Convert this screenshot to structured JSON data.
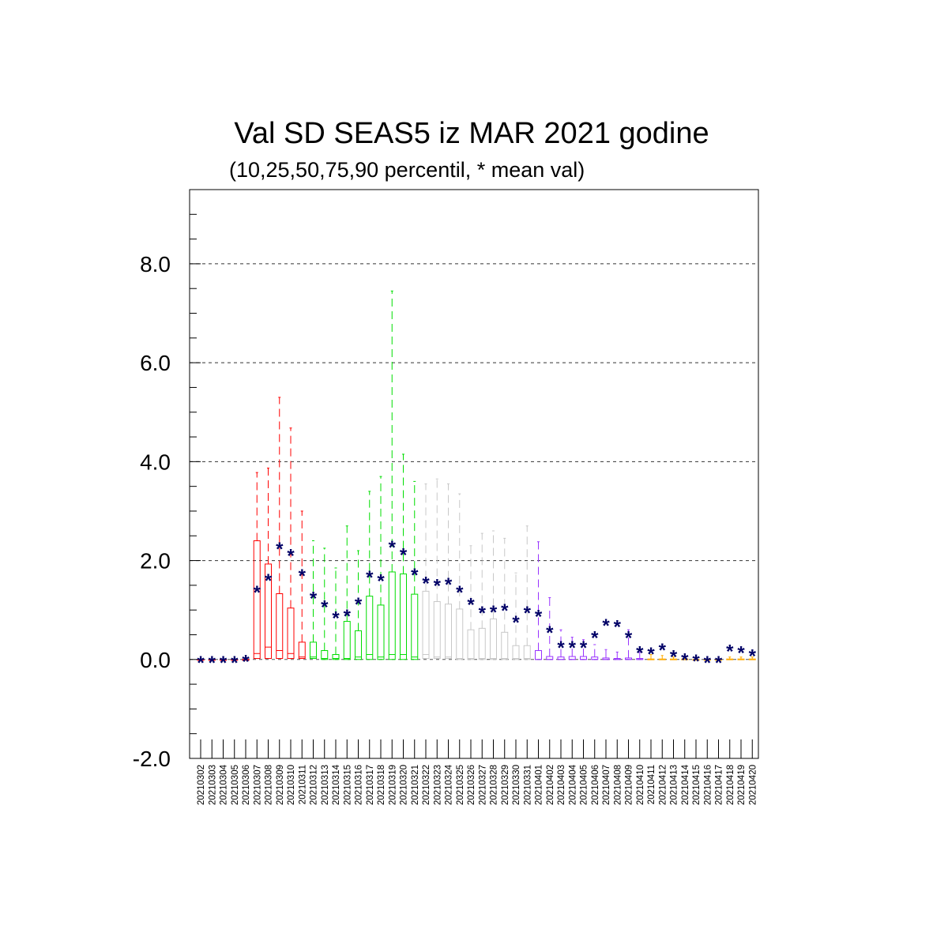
{
  "chart_data": {
    "type": "box",
    "title": "Val SD SEAS5 iz MAR 2021 godine",
    "subtitle": "(10,25,50,75,90 percentil, * mean val)",
    "xlabel": "",
    "ylabel": "",
    "ylim": [
      -2.0,
      9.5
    ],
    "yticks": [
      "-2.0",
      "0.0",
      "2.0",
      "4.0",
      "6.0",
      "8.0"
    ],
    "grid": "dashed at 2.0, 4.0, 6.0, 8.0",
    "mean_marker": "*",
    "mean_color": "#000066",
    "colors": {
      "march_early": "#ff0000",
      "march_mid": "#00dd00",
      "march_late": "#c8c8c8",
      "april_early": "#9933ff",
      "april_late": "#ffaa00"
    },
    "categories": [
      "20210302",
      "20210303",
      "20210304",
      "20210305",
      "20210306",
      "20210307",
      "20210308",
      "20210309",
      "20210310",
      "20210311",
      "20210312",
      "20210313",
      "20210314",
      "20210315",
      "20210316",
      "20210317",
      "20210318",
      "20210319",
      "20210320",
      "20210321",
      "20210322",
      "20210323",
      "20210324",
      "20210325",
      "20210326",
      "20210327",
      "20210328",
      "20210329",
      "20210330",
      "20210331",
      "20210401",
      "20210402",
      "20210403",
      "20210404",
      "20210405",
      "20210406",
      "20210407",
      "20210408",
      "20210409",
      "20210410",
      "20210411",
      "20210412",
      "20210413",
      "20210414",
      "20210415",
      "20210416",
      "20210417",
      "20210418",
      "20210419",
      "20210420"
    ],
    "groups": [
      "march_early",
      "march_early",
      "march_early",
      "march_early",
      "march_early",
      "march_early",
      "march_early",
      "march_early",
      "march_early",
      "march_early",
      "march_mid",
      "march_mid",
      "march_mid",
      "march_mid",
      "march_mid",
      "march_mid",
      "march_mid",
      "march_mid",
      "march_mid",
      "march_mid",
      "march_late",
      "march_late",
      "march_late",
      "march_late",
      "march_late",
      "march_late",
      "march_late",
      "march_late",
      "march_late",
      "march_late",
      "april_early",
      "april_early",
      "april_early",
      "april_early",
      "april_early",
      "april_early",
      "april_early",
      "april_early",
      "april_early",
      "april_early",
      "april_late",
      "april_late",
      "april_late",
      "april_late",
      "april_late",
      "april_late",
      "april_late",
      "april_late",
      "april_late",
      "april_late"
    ],
    "p10": [
      0,
      0,
      0,
      0,
      0,
      0,
      0,
      0,
      0,
      0,
      0,
      0,
      0,
      0,
      0,
      0,
      0,
      0,
      0,
      0,
      0,
      0,
      0,
      0,
      0,
      0,
      0,
      0,
      0,
      0,
      0,
      0,
      0,
      0,
      0,
      0,
      0,
      0,
      0,
      0,
      0,
      0,
      0,
      0,
      0,
      0,
      0,
      0,
      0,
      0
    ],
    "p25": [
      0,
      0,
      0,
      0,
      0,
      0.02,
      0.02,
      0.02,
      0.02,
      0.02,
      0.02,
      0,
      0,
      0,
      0,
      0,
      0,
      0,
      0,
      0,
      0.02,
      0.02,
      0.02,
      0,
      0,
      0,
      0,
      0,
      0,
      0,
      0,
      0,
      0,
      0,
      0,
      0,
      0,
      0,
      0,
      0,
      0,
      0,
      0,
      0,
      0,
      0,
      0,
      0,
      0,
      0
    ],
    "p50": [
      0,
      0,
      0,
      0,
      0,
      0.12,
      0.25,
      0.18,
      0.12,
      0.05,
      0.05,
      0.02,
      0.02,
      0.02,
      0.05,
      0.1,
      0.05,
      0.1,
      0.1,
      0.05,
      0.1,
      0.05,
      0.05,
      0.02,
      0.02,
      0.02,
      0.02,
      0.02,
      0.02,
      0.02,
      0,
      0,
      0,
      0,
      0,
      0,
      0,
      0,
      0,
      0,
      0,
      0,
      0,
      0,
      0,
      0,
      0,
      0,
      0,
      0
    ],
    "p75": [
      0,
      0,
      0,
      0,
      0,
      2.4,
      1.93,
      1.33,
      1.04,
      0.35,
      0.35,
      0.18,
      0.1,
      0.77,
      0.58,
      1.28,
      1.1,
      1.77,
      1.73,
      1.32,
      1.38,
      1.17,
      1.12,
      1.02,
      0.6,
      0.63,
      0.82,
      0.55,
      0.28,
      0.28,
      0.18,
      0.06,
      0.05,
      0.06,
      0.06,
      0.05,
      0.03,
      0.02,
      0.03,
      0.02,
      0.01,
      0.01,
      0.01,
      0.01,
      0,
      0,
      0,
      0.01,
      0.01,
      0.01
    ],
    "p90": [
      0,
      0,
      0,
      0,
      0,
      3.78,
      3.87,
      5.3,
      4.68,
      3.0,
      2.4,
      2.25,
      1.85,
      2.7,
      2.2,
      3.4,
      3.7,
      7.45,
      4.15,
      3.6,
      3.55,
      3.65,
      3.55,
      3.35,
      2.3,
      2.55,
      2.6,
      2.45,
      1.75,
      2.7,
      2.38,
      1.25,
      0.6,
      0.45,
      0.4,
      0.3,
      0.2,
      0.15,
      0.6,
      0.15,
      0.1,
      0.08,
      0.05,
      0.02,
      0.01,
      0.01,
      0.01,
      0.05,
      0.05,
      0.05
    ],
    "mean": [
      0,
      0,
      0,
      0,
      0.02,
      1.42,
      1.66,
      2.3,
      2.16,
      1.75,
      1.3,
      1.12,
      0.9,
      0.94,
      1.18,
      1.72,
      1.65,
      2.33,
      2.18,
      1.77,
      1.6,
      1.55,
      1.58,
      1.42,
      1.17,
      1.0,
      1.02,
      1.05,
      0.81,
      1.0,
      0.93,
      0.6,
      0.3,
      0.3,
      0.3,
      0.5,
      0.75,
      0.72,
      0.5,
      0.2,
      0.17,
      0.25,
      0.12,
      0.05,
      0.03,
      0.0,
      0.0,
      0.23,
      0.2,
      0.13
    ]
  }
}
